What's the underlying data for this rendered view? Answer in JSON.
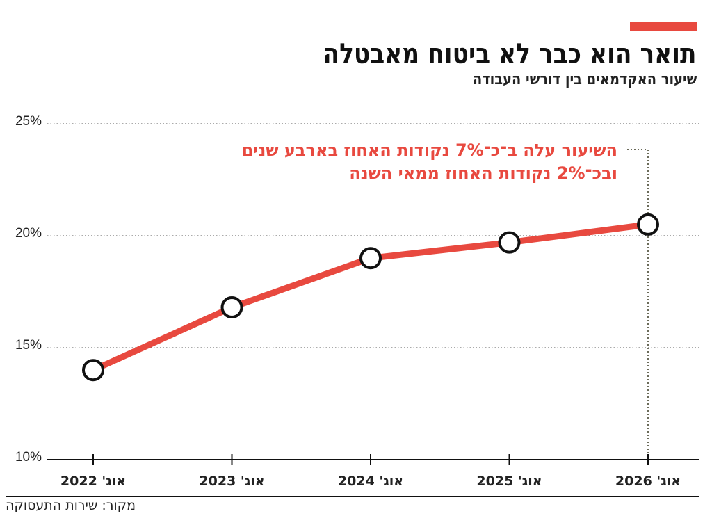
{
  "header": {
    "title": "תואר הוא כבר לא ביטוח מאבטלה",
    "subtitle": "שיעור האקדמאים בין דורשי העבודה"
  },
  "colors": {
    "accent": "#e8493f",
    "line": "#e8493f",
    "marker_fill": "#ffffff",
    "marker_stroke": "#111111",
    "grid": "#555555",
    "annotation_leader": "#6b6b5a"
  },
  "chart_data": {
    "type": "line",
    "x": [
      "אוג' 2022",
      "אוג' 2023",
      "אוג' 2024",
      "אוג' 2025",
      "אוג' 2026"
    ],
    "series": [
      {
        "values": [
          14.0,
          16.8,
          19.0,
          19.7,
          20.5
        ]
      }
    ],
    "ylim": [
      10,
      25
    ],
    "yticks": [
      10,
      15,
      20,
      25
    ],
    "ytick_labels": [
      "10%",
      "15%",
      "20%",
      "25%"
    ],
    "grid": true,
    "annotation": {
      "lines": [
        "השיעור עלה ב־כ־7% נקודות האחוז בארבע שנים",
        "ובכ־2% נקודות האחוז ממאי השנה"
      ],
      "points_to_index": 4
    }
  },
  "footer": {
    "source": "מקור: שירות התעסוקה"
  }
}
